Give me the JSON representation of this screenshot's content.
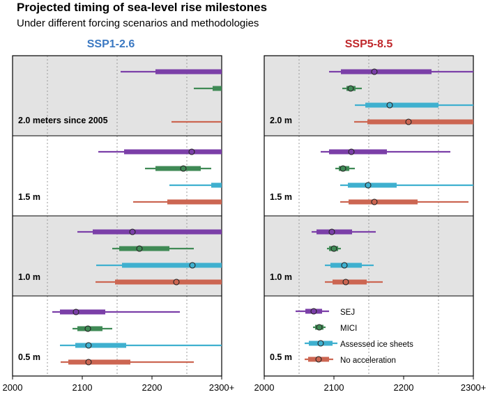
{
  "title": "Projected timing of sea-level rise milestones",
  "subtitle": "Under different forcing scenarios and methodologies",
  "colors": {
    "SEJ": "#7b3fa8",
    "MICI": "#3f8a55",
    "Assessed ice sheets": "#3fb0cf",
    "No acceleration": "#cc6652",
    "panel_ssp126": "#3a78c2",
    "panel_ssp585": "#c0282c",
    "band_shaded": "#e3e3e3"
  },
  "legend": {
    "entries": [
      {
        "name": "SEJ",
        "label": "SEJ"
      },
      {
        "name": "MICI",
        "label": "MICI"
      },
      {
        "name": "Assessed ice sheets",
        "label": "Assessed ice sheets"
      },
      {
        "name": "No acceleration",
        "label": "No acceleration"
      }
    ]
  },
  "chart_data": {
    "type": "interval",
    "series_order": [
      "SEJ",
      "MICI",
      "Assessed ice sheets",
      "No acceleration"
    ],
    "xlim": [
      2000,
      2300
    ],
    "xticks": [
      2000,
      2100,
      2200,
      2300
    ],
    "xtick_labels": [
      "2000",
      "2100",
      "2200",
      "2300+"
    ],
    "minor_gridlines": [
      2050,
      2150,
      2250
    ],
    "levels": [
      {
        "key": "2.0",
        "left_label": "2.0 meters since 2005",
        "right_label": "2.0 m",
        "shaded": true
      },
      {
        "key": "1.5",
        "left_label": "1.5 m",
        "right_label": "1.5 m",
        "shaded": false
      },
      {
        "key": "1.0",
        "left_label": "1.0 m",
        "right_label": "1.0 m",
        "shaded": true
      },
      {
        "key": "0.5",
        "left_label": "0.5 m",
        "right_label": "0.5 m",
        "shaded": false
      }
    ],
    "panels": [
      {
        "title": "SSP1-2.6",
        "rows": {
          "2.0": [
            {
              "series": "SEJ",
              "lo": 2155,
              "q1": 2205,
              "median": null,
              "q3": 2300,
              "hi": 2300
            },
            {
              "series": "MICI",
              "lo": 2260,
              "q1": 2287,
              "median": null,
              "q3": 2300,
              "hi": 2300
            },
            null,
            {
              "series": "No acceleration",
              "lo": 2228,
              "q1": 2300,
              "median": null,
              "q3": 2300,
              "hi": 2300
            }
          ],
          "1.5": [
            {
              "series": "SEJ",
              "lo": 2123,
              "q1": 2160,
              "median": 2257,
              "q3": 2300,
              "hi": 2300
            },
            {
              "series": "MICI",
              "lo": 2190,
              "q1": 2205,
              "median": 2245,
              "q3": 2270,
              "hi": 2285
            },
            {
              "series": "Assessed ice sheets",
              "lo": 2225,
              "q1": 2285,
              "median": null,
              "q3": 2300,
              "hi": 2300
            },
            {
              "series": "No acceleration",
              "lo": 2173,
              "q1": 2222,
              "median": null,
              "q3": 2300,
              "hi": 2300
            }
          ],
          "1.0": [
            {
              "series": "SEJ",
              "lo": 2093,
              "q1": 2115,
              "median": 2172,
              "q3": 2300,
              "hi": 2300
            },
            {
              "series": "MICI",
              "lo": 2143,
              "q1": 2153,
              "median": 2182,
              "q3": 2225,
              "hi": 2260
            },
            {
              "series": "Assessed ice sheets",
              "lo": 2120,
              "q1": 2157,
              "median": 2258,
              "q3": 2300,
              "hi": 2300
            },
            {
              "series": "No acceleration",
              "lo": 2119,
              "q1": 2147,
              "median": 2235,
              "q3": 2300,
              "hi": 2300
            }
          ],
          "0.5": [
            {
              "series": "SEJ",
              "lo": 2057,
              "q1": 2068,
              "median": 2091,
              "q3": 2133,
              "hi": 2240
            },
            {
              "series": "MICI",
              "lo": 2086,
              "q1": 2093,
              "median": 2108,
              "q3": 2129,
              "hi": 2143
            },
            {
              "series": "Assessed ice sheets",
              "lo": 2068,
              "q1": 2090,
              "median": 2109,
              "q3": 2163,
              "hi": 2300
            },
            {
              "series": "No acceleration",
              "lo": 2069,
              "q1": 2080,
              "median": 2109,
              "q3": 2169,
              "hi": 2260
            }
          ]
        }
      },
      {
        "title": "SSP5-8.5",
        "rows": {
          "2.0": [
            {
              "series": "SEJ",
              "lo": 2093,
              "q1": 2110,
              "median": 2158,
              "q3": 2240,
              "hi": 2300
            },
            {
              "series": "MICI",
              "lo": 2112,
              "q1": 2118,
              "median": 2124,
              "q3": 2131,
              "hi": 2140
            },
            {
              "series": "Assessed ice sheets",
              "lo": 2130,
              "q1": 2145,
              "median": 2180,
              "q3": 2250,
              "hi": 2300
            },
            {
              "series": "No acceleration",
              "lo": 2129,
              "q1": 2148,
              "median": 2207,
              "q3": 2300,
              "hi": 2300
            }
          ],
          "1.5": [
            {
              "series": "SEJ",
              "lo": 2081,
              "q1": 2093,
              "median": 2125,
              "q3": 2176,
              "hi": 2267
            },
            {
              "series": "MICI",
              "lo": 2102,
              "q1": 2107,
              "median": 2113,
              "q3": 2122,
              "hi": 2130
            },
            {
              "series": "Assessed ice sheets",
              "lo": 2109,
              "q1": 2120,
              "median": 2149,
              "q3": 2190,
              "hi": 2300
            },
            {
              "series": "No acceleration",
              "lo": 2109,
              "q1": 2121,
              "median": 2158,
              "q3": 2220,
              "hi": 2293
            }
          ],
          "1.0": [
            {
              "series": "SEJ",
              "lo": 2068,
              "q1": 2075,
              "median": 2097,
              "q3": 2126,
              "hi": 2160
            },
            {
              "series": "MICI",
              "lo": 2090,
              "q1": 2093,
              "median": 2100,
              "q3": 2106,
              "hi": 2110
            },
            {
              "series": "Assessed ice sheets",
              "lo": 2087,
              "q1": 2095,
              "median": 2115,
              "q3": 2140,
              "hi": 2157
            },
            {
              "series": "No acceleration",
              "lo": 2087,
              "q1": 2098,
              "median": 2117,
              "q3": 2147,
              "hi": 2170
            }
          ],
          "0.5": [
            null,
            null,
            null,
            null
          ]
        }
      }
    ]
  }
}
